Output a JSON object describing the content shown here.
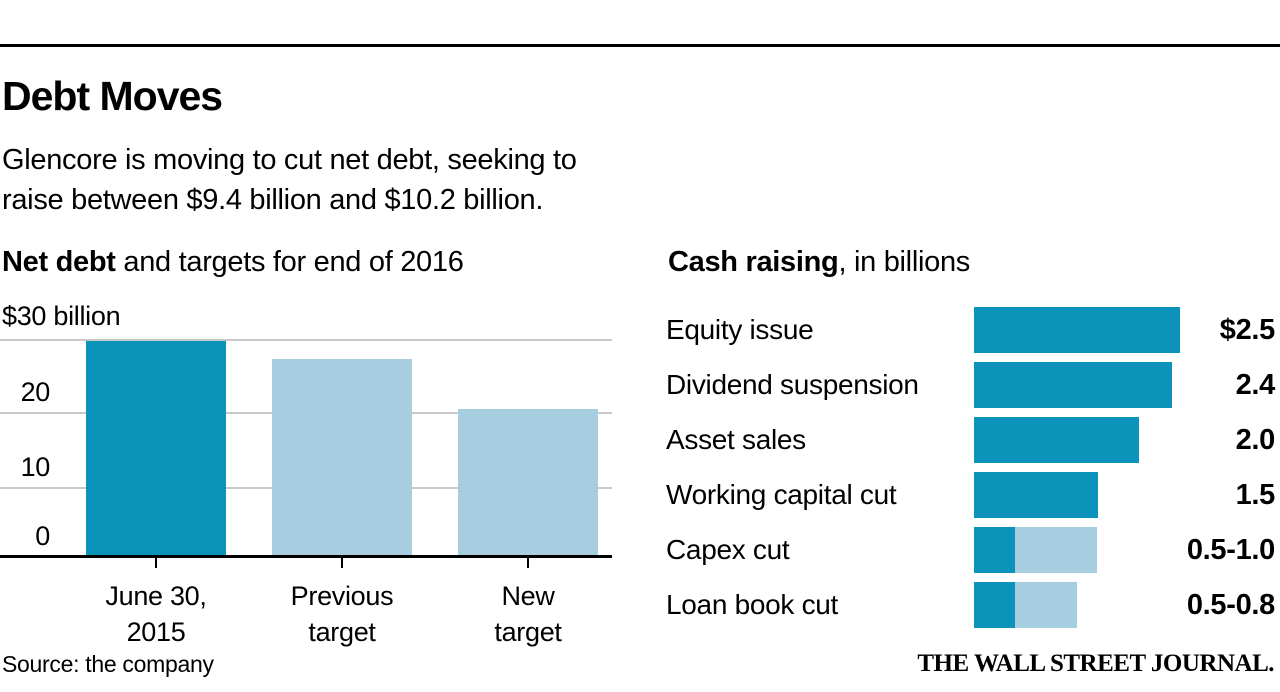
{
  "header": {
    "title": "Debt Moves",
    "subtitle_line1": "Glencore is moving to cut net debt, seeking to",
    "subtitle_line2": "raise between $9.4 billion and $10.2 billion."
  },
  "footer": {
    "source": "Source: the company",
    "brand": "THE WALL STREET JOURNAL."
  },
  "colors": {
    "dark_teal": "#0b93ba",
    "light_blue": "#a6cee0",
    "gridline": "#c9c9c9",
    "text": "#000000"
  },
  "chart_data": [
    {
      "type": "bar",
      "title_bold": "Net debt",
      "title_rest": " and targets for end of 2016",
      "categories": [
        "June 30, 2015",
        "Previous target",
        "New target"
      ],
      "category_lines": [
        [
          "June 30,",
          "2015"
        ],
        [
          "Previous",
          "target"
        ],
        [
          "New",
          "target"
        ]
      ],
      "values": [
        29.3,
        26.8,
        20
      ],
      "bar_tones": [
        "dark",
        "light",
        "light"
      ],
      "ylim": [
        0,
        30
      ],
      "yticks": [
        30,
        20,
        10,
        0
      ],
      "ytick_top_label": "$30 billion",
      "ytick_labels": [
        "20",
        "10",
        "0"
      ],
      "unit": "billions of dollars",
      "grid": true,
      "legend": "none"
    },
    {
      "type": "bar-horizontal",
      "title_bold": "Cash raising",
      "title_rest": ", in billions",
      "xlim": [
        0,
        2.5
      ],
      "grid": false,
      "legend": "none",
      "rows": [
        {
          "label": "Equity issue",
          "value_label": "$2.5",
          "value": 2.5,
          "segments": [
            {
              "tone": "dark",
              "units": 2.5
            }
          ]
        },
        {
          "label": "Dividend suspension",
          "value_label": "2.4",
          "value": 2.4,
          "segments": [
            {
              "tone": "dark",
              "units": 2.4
            }
          ]
        },
        {
          "label": "Asset sales",
          "value_label": "2.0",
          "value": 2.0,
          "segments": [
            {
              "tone": "dark",
              "units": 2.0
            }
          ]
        },
        {
          "label": "Working capital cut",
          "value_label": "1.5",
          "value": 1.5,
          "segments": [
            {
              "tone": "dark",
              "units": 1.5
            }
          ]
        },
        {
          "label": "Capex cut",
          "value_label": "0.5-1.0",
          "value_min": 0.5,
          "value_max": 1.0,
          "segments": [
            {
              "tone": "dark",
              "units": 0.5
            },
            {
              "tone": "light",
              "units": 1.0
            }
          ]
        },
        {
          "label": "Loan book cut",
          "value_label": "0.5-0.8",
          "value_min": 0.5,
          "value_max": 0.8,
          "segments": [
            {
              "tone": "dark",
              "units": 0.5
            },
            {
              "tone": "light",
              "units": 0.75
            }
          ]
        }
      ]
    }
  ]
}
